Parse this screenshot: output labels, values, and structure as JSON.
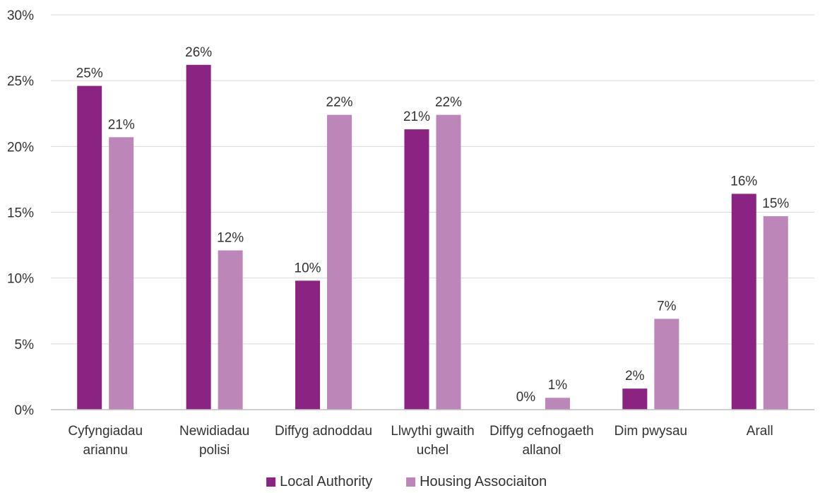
{
  "chart_data": {
    "type": "bar",
    "title": "",
    "xlabel": "",
    "ylabel": "",
    "ylim": [
      0,
      30
    ],
    "y_ticks": [
      "0%",
      "5%",
      "10%",
      "15%",
      "20%",
      "25%",
      "30%"
    ],
    "y_tick_values": [
      0,
      5,
      10,
      15,
      20,
      25,
      30
    ],
    "grid": true,
    "legend_position": "bottom",
    "categories": [
      [
        "Cyfyngiadau",
        "ariannu"
      ],
      [
        "Newidiadau",
        "polisi"
      ],
      [
        "Diffyg adnoddau"
      ],
      [
        "Llwythi gwaith",
        "uchel"
      ],
      [
        "Diffyg cefnogaeth",
        "allanol"
      ],
      [
        "Dim pwysau"
      ],
      [
        "Arall"
      ]
    ],
    "series": [
      {
        "name": "Local Authority",
        "color": "#8b2383",
        "values": [
          24.6,
          26.2,
          9.8,
          21.3,
          0,
          1.6,
          16.4
        ],
        "labels": [
          "25%",
          "26%",
          "10%",
          "21%",
          "0%",
          "2%",
          "16%"
        ]
      },
      {
        "name": "Housing Associaiton",
        "color": "#bc87b8",
        "values": [
          20.7,
          12.1,
          22.4,
          22.4,
          0.9,
          6.9,
          14.7
        ],
        "labels": [
          "21%",
          "12%",
          "22%",
          "22%",
          "1%",
          "7%",
          "15%"
        ]
      }
    ]
  }
}
